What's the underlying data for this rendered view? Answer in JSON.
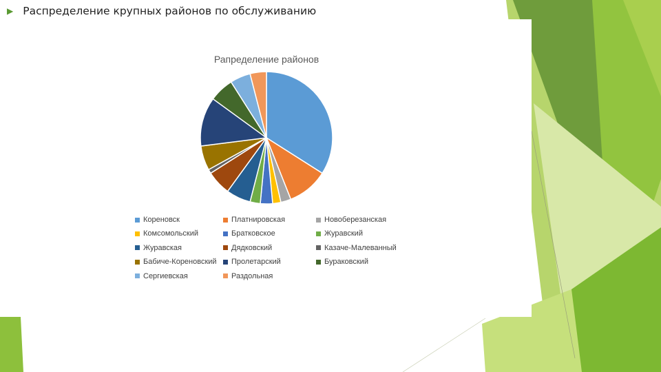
{
  "slide": {
    "title": "Распределение крупных районов по обслуживанию"
  },
  "chart_data": {
    "type": "pie",
    "title": "Рапределение районов",
    "categories": [
      "Кореновск",
      "Платнировская",
      "Новоберезанская",
      "Комсомольский",
      "Братковское",
      "Журавский",
      "Журавская",
      "Дядковский",
      "Казаче-Малеванный",
      "Бабиче-Кореновский",
      "Пролетарский",
      "Бураковский",
      "Сергиевская",
      "Раздольная"
    ],
    "values": [
      34.0,
      10.0,
      2.5,
      2.0,
      3.0,
      2.5,
      6.0,
      6.0,
      1.0,
      6.0,
      12.0,
      6.0,
      5.0,
      4.0
    ],
    "colors": [
      "#5b9bd5",
      "#ed7d31",
      "#a5a5a5",
      "#ffc000",
      "#4472c4",
      "#70ad47",
      "#255e91",
      "#9e480e",
      "#636363",
      "#997300",
      "#264478",
      "#43682b",
      "#7cafdd",
      "#f1975a"
    ],
    "legend_position": "bottom",
    "start_angle_deg": 0,
    "direction": "clockwise"
  }
}
